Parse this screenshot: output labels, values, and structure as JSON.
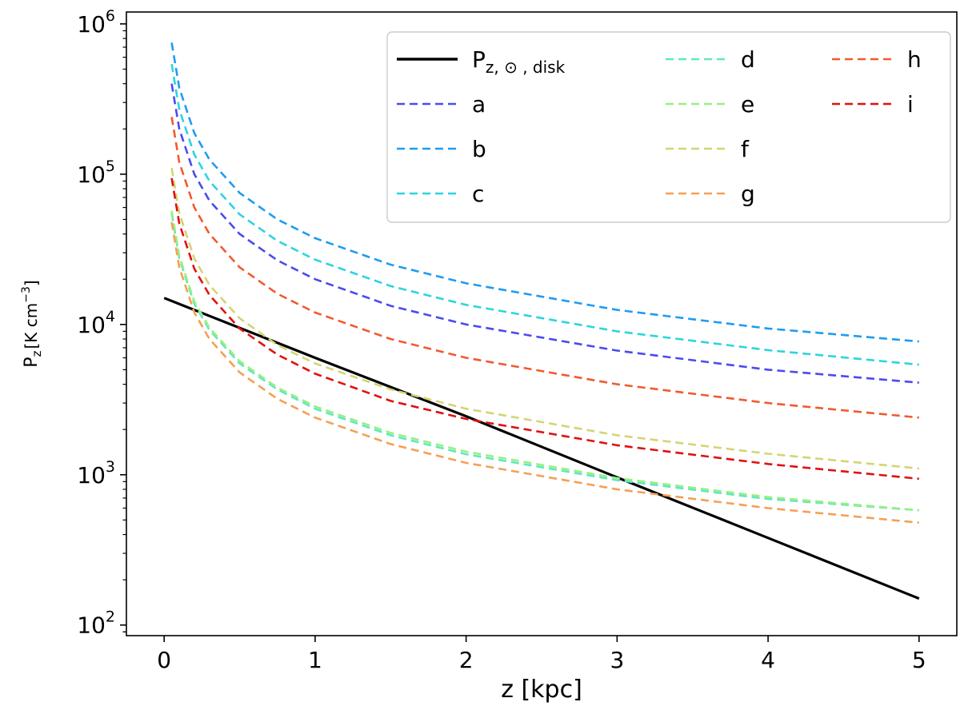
{
  "chart_data": {
    "type": "line",
    "xlabel": "z [kpc]",
    "ylabel": "P_z [K cm^-3]",
    "ylabel_parts": {
      "main": "P",
      "sub": "z",
      "unit": "[K cm",
      "exp": "−3",
      "close": "]"
    },
    "xlim": [
      -0.25,
      5.25
    ],
    "ylim": [
      85,
      1200000
    ],
    "yscale": "log",
    "x_ticks": [
      {
        "value": 0,
        "label": "0"
      },
      {
        "value": 1,
        "label": "1"
      },
      {
        "value": 2,
        "label": "2"
      },
      {
        "value": 3,
        "label": "3"
      },
      {
        "value": 4,
        "label": "4"
      },
      {
        "value": 5,
        "label": "5"
      }
    ],
    "y_ticks": [
      {
        "value": 100,
        "base": "10",
        "exp": "2"
      },
      {
        "value": 1000,
        "base": "10",
        "exp": "3"
      },
      {
        "value": 10000,
        "base": "10",
        "exp": "4"
      },
      {
        "value": 100000,
        "base": "10",
        "exp": "5"
      },
      {
        "value": 1000000,
        "base": "10",
        "exp": "6"
      }
    ],
    "grid": false,
    "legend_position": "top-right",
    "legend_columns": 3,
    "series": [
      {
        "name": "P",
        "name_sub": "z, ⊙ , disk",
        "style": "solid",
        "color": "#000000",
        "x": [
          0,
          1,
          2,
          3,
          4,
          5
        ],
        "y": [
          15000,
          6000,
          2450,
          960,
          380,
          150
        ]
      },
      {
        "name": "a",
        "style": "dashed",
        "color": "#4b4bf0",
        "x": [
          0.05,
          0.1,
          0.2,
          0.3,
          0.5,
          0.75,
          1,
          1.5,
          2,
          3,
          4,
          5
        ],
        "y": [
          400000,
          200000,
          100000,
          66700,
          40000,
          26700,
          20000,
          13300,
          10000,
          6700,
          5000,
          4100
        ]
      },
      {
        "name": "b",
        "style": "dashed",
        "color": "#1f9cf0",
        "x": [
          0.05,
          0.1,
          0.2,
          0.3,
          0.5,
          0.75,
          1,
          1.5,
          2,
          3,
          4,
          5
        ],
        "y": [
          750000,
          375000,
          187500,
          125000,
          75000,
          50000,
          37500,
          25000,
          18800,
          12500,
          9400,
          7700
        ]
      },
      {
        "name": "c",
        "style": "dashed",
        "color": "#2cd4e0",
        "x": [
          0.05,
          0.1,
          0.2,
          0.3,
          0.5,
          0.75,
          1,
          1.5,
          2,
          3,
          4,
          5
        ],
        "y": [
          540000,
          270000,
          135000,
          90000,
          54000,
          36000,
          27000,
          18000,
          13500,
          9000,
          6750,
          5400
        ]
      },
      {
        "name": "d",
        "style": "dashed",
        "color": "#5ee8c0",
        "x": [
          0.05,
          0.1,
          0.2,
          0.3,
          0.5,
          0.75,
          1,
          1.5,
          2,
          3,
          4,
          5
        ],
        "y": [
          55000,
          27500,
          13700,
          9200,
          5500,
          3700,
          2750,
          1830,
          1370,
          920,
          690,
          580
        ]
      },
      {
        "name": "e",
        "style": "dashed",
        "color": "#98f080",
        "x": [
          0.05,
          0.1,
          0.2,
          0.3,
          0.5,
          0.75,
          1,
          1.5,
          2,
          3,
          4,
          5
        ],
        "y": [
          57000,
          28500,
          14200,
          9500,
          5700,
          3800,
          2850,
          1900,
          1425,
          950,
          710,
          580
        ]
      },
      {
        "name": "f",
        "style": "dashed",
        "color": "#d4d474",
        "x": [
          0.05,
          0.1,
          0.2,
          0.3,
          0.5,
          0.75,
          1,
          1.5,
          2,
          3,
          4,
          5
        ],
        "y": [
          110000,
          55000,
          27500,
          18300,
          11000,
          7300,
          5500,
          3700,
          2750,
          1830,
          1380,
          1100
        ]
      },
      {
        "name": "g",
        "style": "dashed",
        "color": "#f5a055",
        "x": [
          0.05,
          0.1,
          0.2,
          0.3,
          0.5,
          0.75,
          1,
          1.5,
          2,
          3,
          4,
          5
        ],
        "y": [
          48000,
          24000,
          12000,
          8000,
          4800,
          3200,
          2400,
          1600,
          1200,
          800,
          600,
          480
        ]
      },
      {
        "name": "h",
        "style": "dashed",
        "color": "#f05a30",
        "x": [
          0.05,
          0.1,
          0.2,
          0.3,
          0.5,
          0.75,
          1,
          1.5,
          2,
          3,
          4,
          5
        ],
        "y": [
          240000,
          120000,
          60000,
          40000,
          24000,
          16000,
          12000,
          8000,
          6000,
          4000,
          3000,
          2400
        ]
      },
      {
        "name": "i",
        "style": "dashed",
        "color": "#e01010",
        "x": [
          0.05,
          0.1,
          0.2,
          0.3,
          0.5,
          0.75,
          1,
          1.5,
          2,
          3,
          4,
          5
        ],
        "y": [
          94000,
          47000,
          23500,
          15700,
          9400,
          6300,
          4700,
          3100,
          2350,
          1570,
          1180,
          940
        ]
      }
    ]
  }
}
